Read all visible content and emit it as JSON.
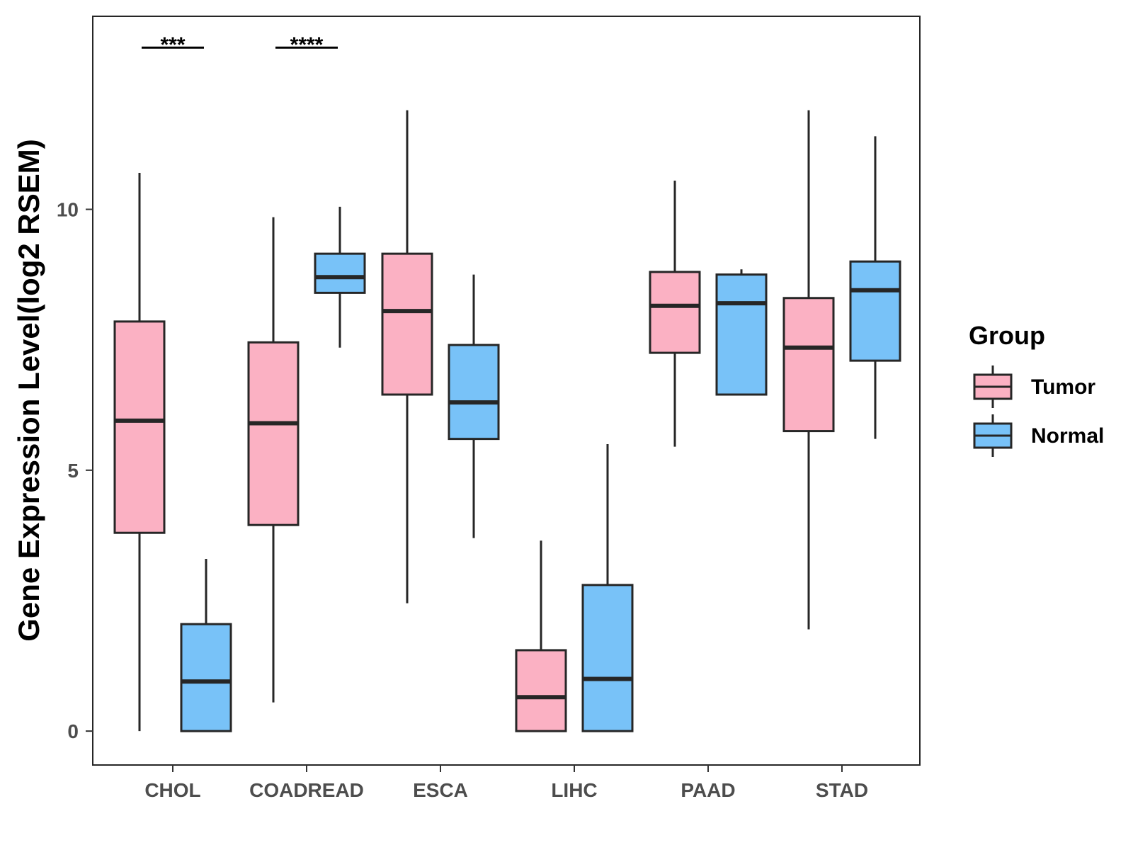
{
  "chart_data": {
    "type": "boxplot",
    "title": "",
    "xlabel": "",
    "ylabel": "Gene Expression Level(log2 RSEM)",
    "ylim": [
      -0.65,
      13.7
    ],
    "yticks": [
      0,
      5,
      10
    ],
    "ytick_labels": [
      "0",
      "5",
      "10"
    ],
    "grid": false,
    "categories": [
      "CHOL",
      "COADREAD",
      "ESCA",
      "LIHC",
      "PAAD",
      "STAD"
    ],
    "legend": {
      "title": "Group",
      "position": "right",
      "entries": [
        "Tumor",
        "Normal"
      ]
    },
    "colors": {
      "Tumor": "#fbb1c3",
      "Normal": "#78c2f8",
      "outline": "#262626"
    },
    "series": [
      {
        "name": "Tumor",
        "boxes": [
          {
            "category": "CHOL",
            "min": 0.0,
            "q1": 3.8,
            "median": 5.95,
            "q3": 7.85,
            "max": 10.7
          },
          {
            "category": "COADREAD",
            "min": 0.55,
            "q1": 3.95,
            "median": 5.9,
            "q3": 7.45,
            "max": 9.85
          },
          {
            "category": "ESCA",
            "min": 2.45,
            "q1": 6.45,
            "median": 8.05,
            "q3": 9.15,
            "max": 11.9
          },
          {
            "category": "LIHC",
            "min": 0.0,
            "q1": 0.0,
            "median": 0.65,
            "q3": 1.55,
            "max": 3.65
          },
          {
            "category": "PAAD",
            "min": 5.45,
            "q1": 7.25,
            "median": 8.15,
            "q3": 8.8,
            "max": 10.55
          },
          {
            "category": "STAD",
            "min": 1.95,
            "q1": 5.75,
            "median": 7.35,
            "q3": 8.3,
            "max": 11.9
          }
        ]
      },
      {
        "name": "Normal",
        "boxes": [
          {
            "category": "CHOL",
            "min": 0.0,
            "q1": 0.0,
            "median": 0.95,
            "q3": 2.05,
            "max": 3.3
          },
          {
            "category": "COADREAD",
            "min": 7.35,
            "q1": 8.4,
            "median": 8.7,
            "q3": 9.15,
            "max": 10.05
          },
          {
            "category": "ESCA",
            "min": 3.7,
            "q1": 5.6,
            "median": 6.3,
            "q3": 7.4,
            "max": 8.75
          },
          {
            "category": "LIHC",
            "min": 0.0,
            "q1": 0.0,
            "median": 1.0,
            "q3": 2.8,
            "max": 5.5
          },
          {
            "category": "PAAD",
            "min": 6.45,
            "q1": 6.45,
            "median": 8.2,
            "q3": 8.75,
            "max": 8.85
          },
          {
            "category": "STAD",
            "min": 5.6,
            "q1": 7.1,
            "median": 8.45,
            "q3": 9.0,
            "max": 11.4
          }
        ]
      }
    ],
    "annotations": [
      {
        "category": "CHOL",
        "text": "***",
        "y": 13.1
      },
      {
        "category": "COADREAD",
        "text": "****",
        "y": 13.1
      }
    ]
  }
}
